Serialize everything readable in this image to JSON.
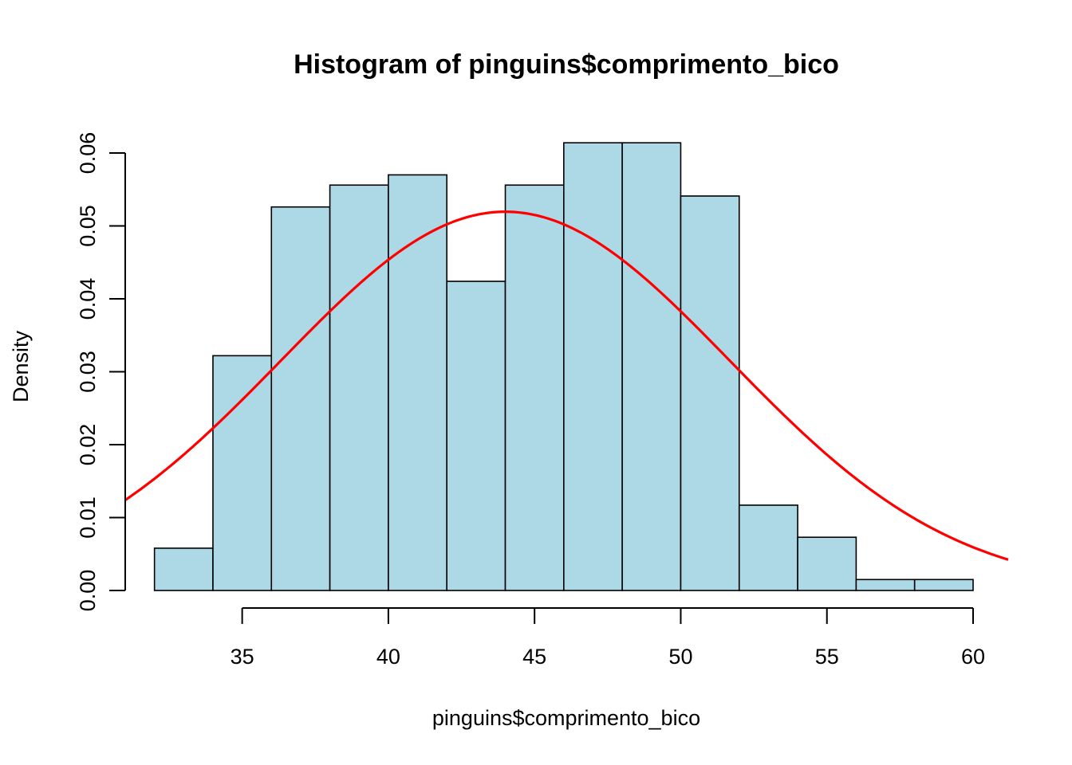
{
  "chart_data": {
    "type": "bar",
    "title": "Histogram of pinguins$comprimento_bico",
    "xlabel": "pinguins$comprimento_bico",
    "ylabel": "Density",
    "bin_edges": [
      32,
      34,
      36,
      38,
      40,
      42,
      44,
      46,
      48,
      50,
      52,
      54,
      56,
      58,
      60
    ],
    "values": [
      0.0058,
      0.0322,
      0.0526,
      0.0556,
      0.057,
      0.0424,
      0.0556,
      0.0614,
      0.0614,
      0.0541,
      0.0117,
      0.0073,
      0.0015,
      0.0015
    ],
    "xlim": [
      31.0,
      61.2
    ],
    "ylim": [
      0,
      0.06
    ],
    "x_ticks": [
      35,
      40,
      45,
      50,
      55,
      60
    ],
    "y_ticks": [
      0.0,
      0.01,
      0.02,
      0.03,
      0.04,
      0.05,
      0.06
    ],
    "x_tick_labels": [
      "35",
      "40",
      "45",
      "50",
      "55",
      "60"
    ],
    "y_tick_labels": [
      "0.00",
      "0.01",
      "0.02",
      "0.03",
      "0.04",
      "0.05",
      "0.06"
    ],
    "density_curve": {
      "distribution": "normal",
      "mean": 44.0,
      "sd": 7.68,
      "color": "#ff0000"
    },
    "bar_color": "#add8e6",
    "grid": false
  }
}
